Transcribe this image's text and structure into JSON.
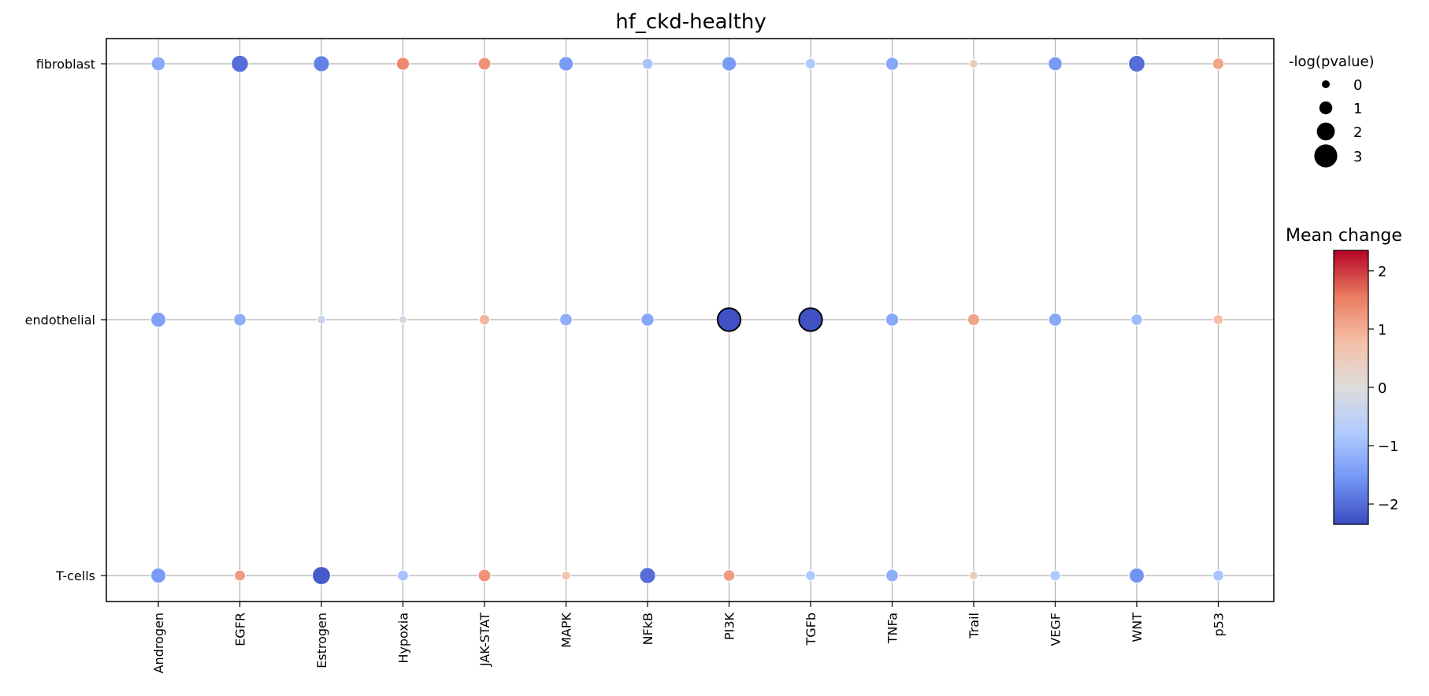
{
  "chart_data": {
    "type": "scatter",
    "title": "hf_ckd-healthy",
    "xlabel": "",
    "ylabel": "",
    "x_categories": [
      "Androgen",
      "EGFR",
      "Estrogen",
      "Hypoxia",
      "JAK-STAT",
      "MAPK",
      "NFkB",
      "PI3K",
      "TGFb",
      "TNFa",
      "Trail",
      "VEGF",
      "WNT",
      "p53"
    ],
    "y_categories": [
      "fibroblast",
      "endothelial",
      "T-cells"
    ],
    "grid": true,
    "points": [
      {
        "y": "fibroblast",
        "x": "Androgen",
        "mean_change": -1.3,
        "neg_log_pvalue": 1.2,
        "significant": false
      },
      {
        "y": "fibroblast",
        "x": "EGFR",
        "mean_change": -2.0,
        "neg_log_pvalue": 1.8,
        "significant": false
      },
      {
        "y": "fibroblast",
        "x": "Estrogen",
        "mean_change": -1.8,
        "neg_log_pvalue": 1.6,
        "significant": false
      },
      {
        "y": "fibroblast",
        "x": "Hypoxia",
        "mean_change": 1.4,
        "neg_log_pvalue": 1.0,
        "significant": false
      },
      {
        "y": "fibroblast",
        "x": "JAK-STAT",
        "mean_change": 1.3,
        "neg_log_pvalue": 0.9,
        "significant": false
      },
      {
        "y": "fibroblast",
        "x": "MAPK",
        "mean_change": -1.5,
        "neg_log_pvalue": 1.3,
        "significant": false
      },
      {
        "y": "fibroblast",
        "x": "NFkB",
        "mean_change": -0.9,
        "neg_log_pvalue": 0.6,
        "significant": false
      },
      {
        "y": "fibroblast",
        "x": "PI3K",
        "mean_change": -1.5,
        "neg_log_pvalue": 1.3,
        "significant": false
      },
      {
        "y": "fibroblast",
        "x": "TGFb",
        "mean_change": -0.8,
        "neg_log_pvalue": 0.5,
        "significant": false
      },
      {
        "y": "fibroblast",
        "x": "TNFa",
        "mean_change": -1.3,
        "neg_log_pvalue": 1.0,
        "significant": false
      },
      {
        "y": "fibroblast",
        "x": "Trail",
        "mean_change": 0.5,
        "neg_log_pvalue": 0.1,
        "significant": false
      },
      {
        "y": "fibroblast",
        "x": "VEGF",
        "mean_change": -1.5,
        "neg_log_pvalue": 1.2,
        "significant": false
      },
      {
        "y": "fibroblast",
        "x": "WNT",
        "mean_change": -2.0,
        "neg_log_pvalue": 1.7,
        "significant": false
      },
      {
        "y": "fibroblast",
        "x": "p53",
        "mean_change": 1.1,
        "neg_log_pvalue": 0.7,
        "significant": false
      },
      {
        "y": "endothelial",
        "x": "Androgen",
        "mean_change": -1.4,
        "neg_log_pvalue": 1.4,
        "significant": false
      },
      {
        "y": "endothelial",
        "x": "EGFR",
        "mean_change": -1.2,
        "neg_log_pvalue": 0.9,
        "significant": false
      },
      {
        "y": "endothelial",
        "x": "Estrogen",
        "mean_change": -0.4,
        "neg_log_pvalue": 0.1,
        "significant": false
      },
      {
        "y": "endothelial",
        "x": "Hypoxia",
        "mean_change": -0.2,
        "neg_log_pvalue": 0.0,
        "significant": false
      },
      {
        "y": "endothelial",
        "x": "JAK-STAT",
        "mean_change": 0.9,
        "neg_log_pvalue": 0.5,
        "significant": false
      },
      {
        "y": "endothelial",
        "x": "MAPK",
        "mean_change": -1.2,
        "neg_log_pvalue": 0.9,
        "significant": false
      },
      {
        "y": "endothelial",
        "x": "NFkB",
        "mean_change": -1.3,
        "neg_log_pvalue": 1.0,
        "significant": false
      },
      {
        "y": "endothelial",
        "x": "PI3K",
        "mean_change": -2.3,
        "neg_log_pvalue": 3.0,
        "significant": true
      },
      {
        "y": "endothelial",
        "x": "TGFb",
        "mean_change": -2.3,
        "neg_log_pvalue": 3.0,
        "significant": true
      },
      {
        "y": "endothelial",
        "x": "TNFa",
        "mean_change": -1.3,
        "neg_log_pvalue": 1.0,
        "significant": false
      },
      {
        "y": "endothelial",
        "x": "Trail",
        "mean_change": 1.1,
        "neg_log_pvalue": 0.8,
        "significant": false
      },
      {
        "y": "endothelial",
        "x": "VEGF",
        "mean_change": -1.3,
        "neg_log_pvalue": 1.0,
        "significant": false
      },
      {
        "y": "endothelial",
        "x": "WNT",
        "mean_change": -1.0,
        "neg_log_pvalue": 0.7,
        "significant": false
      },
      {
        "y": "endothelial",
        "x": "p53",
        "mean_change": 0.8,
        "neg_log_pvalue": 0.4,
        "significant": false
      },
      {
        "y": "T-cells",
        "x": "Androgen",
        "mean_change": -1.5,
        "neg_log_pvalue": 1.4,
        "significant": false
      },
      {
        "y": "T-cells",
        "x": "EGFR",
        "mean_change": 1.2,
        "neg_log_pvalue": 0.6,
        "significant": false
      },
      {
        "y": "T-cells",
        "x": "Estrogen",
        "mean_change": -2.2,
        "neg_log_pvalue": 2.0,
        "significant": false
      },
      {
        "y": "T-cells",
        "x": "Hypoxia",
        "mean_change": -0.9,
        "neg_log_pvalue": 0.6,
        "significant": false
      },
      {
        "y": "T-cells",
        "x": "JAK-STAT",
        "mean_change": 1.3,
        "neg_log_pvalue": 0.9,
        "significant": false
      },
      {
        "y": "T-cells",
        "x": "MAPK",
        "mean_change": 0.6,
        "neg_log_pvalue": 0.2,
        "significant": false
      },
      {
        "y": "T-cells",
        "x": "NFkB",
        "mean_change": -2.0,
        "neg_log_pvalue": 1.6,
        "significant": false
      },
      {
        "y": "T-cells",
        "x": "PI3K",
        "mean_change": 1.2,
        "neg_log_pvalue": 0.7,
        "significant": false
      },
      {
        "y": "T-cells",
        "x": "TGFb",
        "mean_change": -0.8,
        "neg_log_pvalue": 0.4,
        "significant": false
      },
      {
        "y": "T-cells",
        "x": "TNFa",
        "mean_change": -1.2,
        "neg_log_pvalue": 0.9,
        "significant": false
      },
      {
        "y": "T-cells",
        "x": "Trail",
        "mean_change": 0.4,
        "neg_log_pvalue": 0.1,
        "significant": false
      },
      {
        "y": "T-cells",
        "x": "VEGF",
        "mean_change": -0.8,
        "neg_log_pvalue": 0.5,
        "significant": false
      },
      {
        "y": "T-cells",
        "x": "WNT",
        "mean_change": -1.6,
        "neg_log_pvalue": 1.4,
        "significant": false
      },
      {
        "y": "T-cells",
        "x": "p53",
        "mean_change": -0.9,
        "neg_log_pvalue": 0.6,
        "significant": false
      }
    ],
    "size_legend": {
      "title": "-log(pvalue)",
      "levels": [
        "0",
        "1",
        "2",
        "3"
      ],
      "values": [
        0,
        1,
        2,
        3
      ]
    },
    "colorbar": {
      "title": "Mean change",
      "range": [
        -2.35,
        2.35
      ],
      "ticks": [
        "2",
        "1",
        "0",
        "−1",
        "−2"
      ],
      "tick_values": [
        2,
        1,
        0,
        -1,
        -2
      ],
      "colormap": "coolwarm",
      "stops": [
        "#3b4cc0",
        "#7396f5",
        "#b0cbff",
        "#dddcdc",
        "#f6bfa6",
        "#ea7b60",
        "#b40426"
      ]
    },
    "colors": {
      "grid": "#b0b0b0",
      "significant_edge": "#000000",
      "point_edge": "#ffffff"
    }
  }
}
